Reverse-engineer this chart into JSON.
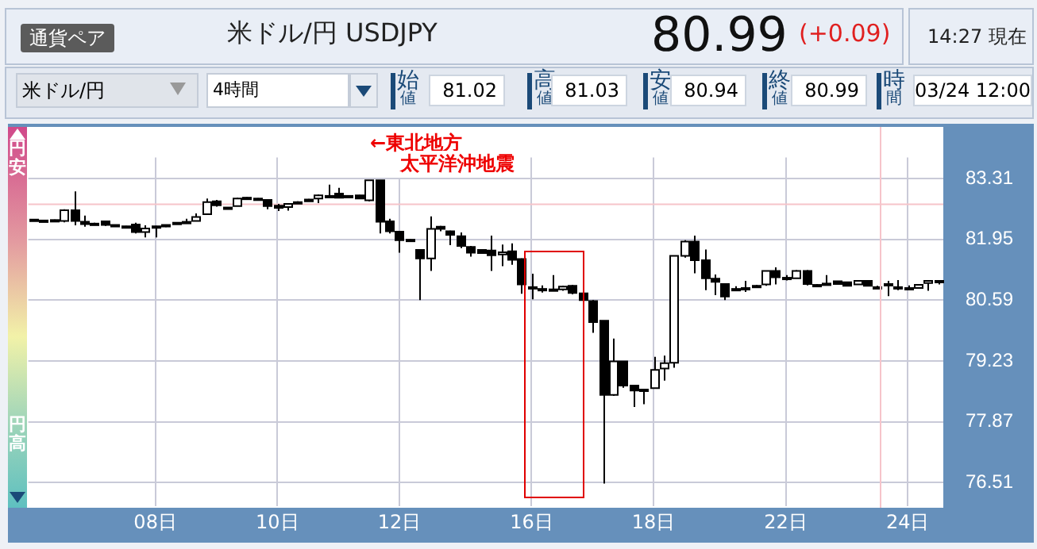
{
  "chart_data": {
    "type": "candlestick",
    "title": "米ドル/円 USDJPY",
    "categories": [
      null,
      null,
      null,
      null,
      null,
      null,
      null,
      null,
      null,
      null,
      null,
      null,
      "08日",
      null,
      null,
      null,
      null,
      null,
      null,
      null,
      null,
      null,
      null,
      null,
      "10日",
      null,
      null,
      null,
      null,
      null,
      null,
      null,
      null,
      null,
      null,
      null,
      "12日",
      null,
      null,
      null,
      null,
      null,
      null,
      null,
      null,
      null,
      null,
      null,
      null,
      "16日",
      null,
      null,
      null,
      null,
      null,
      null,
      null,
      null,
      null,
      null,
      null,
      "18日",
      null,
      null,
      null,
      null,
      null,
      null,
      null,
      null,
      null,
      null,
      null,
      null,
      "22日",
      null,
      null,
      null,
      null,
      null,
      null,
      null,
      null,
      null,
      null,
      null,
      "24日",
      null,
      null,
      null
    ],
    "ohlc": [
      [
        82.39,
        82.4,
        82.38,
        82.39
      ],
      [
        82.37,
        82.38,
        82.36,
        82.37
      ],
      [
        82.38,
        82.39,
        82.37,
        82.38
      ],
      [
        82.36,
        82.62,
        82.33,
        82.6
      ],
      [
        82.6,
        83.02,
        82.26,
        82.36
      ],
      [
        82.34,
        82.48,
        82.23,
        82.29
      ],
      [
        82.3,
        82.32,
        82.28,
        82.3
      ],
      [
        82.35,
        82.37,
        82.25,
        82.27
      ],
      [
        82.27,
        82.28,
        82.25,
        82.26
      ],
      [
        82.24,
        82.25,
        82.2,
        82.24
      ],
      [
        82.28,
        82.32,
        82.08,
        82.11
      ],
      [
        82.11,
        82.26,
        81.99,
        82.19
      ],
      [
        82.24,
        82.25,
        81.99,
        82.21
      ],
      [
        82.27,
        82.28,
        82.22,
        82.24
      ],
      [
        82.32,
        82.33,
        82.31,
        82.32
      ],
      [
        82.33,
        82.41,
        82.32,
        82.34
      ],
      [
        82.36,
        82.53,
        82.36,
        82.45
      ],
      [
        82.51,
        82.86,
        82.51,
        82.78
      ],
      [
        82.8,
        82.83,
        82.68,
        82.71
      ],
      [
        82.66,
        82.67,
        82.65,
        82.66
      ],
      [
        82.69,
        82.88,
        82.69,
        82.86
      ],
      [
        82.88,
        82.89,
        82.87,
        82.88
      ],
      [
        82.86,
        82.87,
        82.85,
        82.86
      ],
      [
        82.83,
        82.84,
        82.62,
        82.69
      ],
      [
        82.7,
        82.74,
        82.58,
        82.65
      ],
      [
        82.67,
        82.74,
        82.59,
        82.74
      ],
      [
        82.78,
        82.8,
        82.77,
        82.78
      ],
      [
        82.84,
        82.85,
        82.8,
        82.8
      ],
      [
        82.86,
        82.95,
        82.76,
        82.93
      ],
      [
        82.92,
        83.17,
        82.91,
        82.92
      ],
      [
        82.97,
        83.1,
        82.87,
        82.88
      ],
      [
        82.92,
        82.93,
        82.91,
        82.92
      ],
      [
        82.93,
        82.94,
        82.85,
        82.86
      ],
      [
        82.82,
        83.27,
        82.8,
        83.27
      ],
      [
        83.27,
        83.27,
        82.08,
        82.34
      ],
      [
        82.35,
        82.41,
        82.08,
        82.13
      ],
      [
        82.12,
        82.13,
        81.65,
        81.93
      ],
      [
        81.94,
        81.95,
        81.93,
        81.94
      ],
      [
        81.71,
        81.71,
        80.59,
        81.52
      ],
      [
        81.52,
        82.46,
        81.24,
        82.18
      ],
      [
        82.23,
        82.25,
        82.13,
        82.18
      ],
      [
        82.13,
        82.14,
        81.82,
        82.05
      ],
      [
        82.02,
        82.1,
        81.75,
        81.8
      ],
      [
        81.78,
        81.8,
        81.56,
        81.65
      ],
      [
        81.71,
        81.72,
        81.63,
        81.64
      ],
      [
        81.7,
        82.03,
        81.24,
        81.59
      ],
      [
        81.61,
        81.83,
        81.35,
        81.66
      ],
      [
        81.68,
        81.86,
        81.38,
        81.49
      ],
      [
        81.51,
        81.52,
        80.73,
        80.94
      ],
      [
        80.88,
        81.18,
        80.61,
        80.88
      ],
      [
        80.84,
        80.92,
        80.76,
        80.84
      ],
      [
        80.83,
        81.15,
        80.82,
        80.83
      ],
      [
        80.83,
        80.91,
        80.8,
        80.89
      ],
      [
        80.91,
        80.93,
        80.72,
        80.75
      ],
      [
        80.74,
        80.75,
        80.55,
        80.59
      ],
      [
        80.57,
        80.59,
        79.86,
        80.1
      ],
      [
        80.13,
        80.13,
        76.49,
        78.47
      ],
      [
        78.47,
        79.73,
        78.45,
        79.22
      ],
      [
        79.22,
        79.23,
        78.63,
        78.68
      ],
      [
        78.68,
        78.69,
        78.2,
        78.57
      ],
      [
        78.59,
        78.6,
        78.26,
        78.59
      ],
      [
        78.62,
        79.32,
        78.62,
        79.03
      ],
      [
        79.06,
        79.35,
        78.79,
        79.18
      ],
      [
        79.19,
        81.58,
        79.08,
        81.58
      ],
      [
        81.58,
        81.93,
        81.54,
        81.9
      ],
      [
        81.9,
        82.03,
        81.19,
        81.48
      ],
      [
        81.48,
        81.72,
        80.81,
        81.08
      ],
      [
        81.07,
        81.16,
        80.7,
        81.0
      ],
      [
        80.95,
        80.95,
        80.59,
        80.67
      ],
      [
        80.84,
        80.9,
        80.79,
        80.84
      ],
      [
        80.86,
        81.02,
        80.77,
        80.86
      ],
      [
        80.91,
        80.93,
        80.89,
        80.91
      ],
      [
        80.94,
        81.24,
        80.91,
        81.24
      ],
      [
        81.24,
        81.32,
        80.94,
        81.1
      ],
      [
        81.09,
        81.15,
        81.03,
        81.09
      ],
      [
        81.08,
        81.26,
        81.08,
        81.24
      ],
      [
        81.24,
        81.26,
        80.92,
        80.95
      ],
      [
        80.93,
        80.95,
        80.92,
        80.93
      ],
      [
        80.96,
        81.15,
        80.93,
        80.96
      ],
      [
        81.01,
        81.02,
        80.94,
        80.95
      ],
      [
        80.99,
        81.0,
        80.9,
        80.91
      ],
      [
        80.94,
        81.03,
        80.93,
        81.02
      ],
      [
        81.02,
        81.03,
        80.9,
        80.91
      ],
      [
        80.88,
        80.91,
        80.85,
        80.88
      ],
      [
        80.95,
        81.02,
        80.68,
        80.95
      ],
      [
        80.88,
        81.04,
        80.81,
        80.88
      ],
      [
        80.86,
        80.92,
        80.85,
        80.86
      ],
      [
        80.86,
        80.93,
        80.85,
        80.93
      ],
      [
        80.97,
        81.02,
        80.8,
        81.02
      ],
      [
        81.02,
        81.03,
        80.94,
        80.99
      ]
    ],
    "ylim": [
      75.99,
      83.78
    ],
    "yticks": [
      76.51,
      77.87,
      79.23,
      80.59,
      81.95,
      83.31
    ],
    "grid": true,
    "ref_lines": [
      {
        "axis": "y",
        "value": 82.73,
        "color": "#f6c4ca"
      }
    ],
    "annotations": [
      "通貨ペア",
      "80.99",
      "(+0.09)",
      "14:27 現在",
      "米ドル/円",
      "4時間",
      "始値",
      "81.02",
      "高値",
      "81.03",
      "安値",
      "80.94",
      "終値",
      "80.99",
      "時間",
      "03/24 12:00",
      "円安",
      "円高",
      "←東北地方",
      "太平洋沖地震"
    ]
  }
}
